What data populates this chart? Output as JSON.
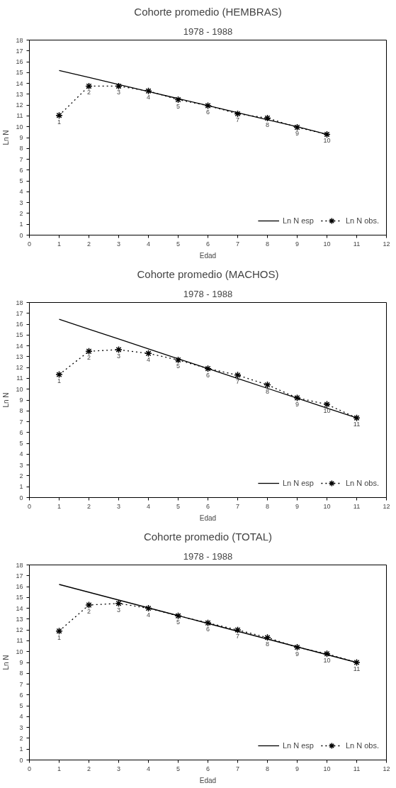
{
  "chart_data": [
    {
      "type": "line",
      "title": "Cohorte promedio (HEMBRAS)",
      "subtitle": "1978 - 1988",
      "xlabel": "Edad",
      "ylabel": "Ln N",
      "x": [
        1,
        2,
        3,
        4,
        5,
        6,
        7,
        8,
        9,
        10
      ],
      "series": [
        {
          "name": "Ln N esp",
          "color": "#000000",
          "line_style": "solid",
          "marker": "none",
          "values": [
            15.2,
            14.55,
            13.9,
            13.25,
            12.6,
            11.95,
            11.3,
            10.65,
            10.0,
            9.3
          ]
        },
        {
          "name": "Ln N obs.",
          "color": "#000000",
          "line_style": "dotted",
          "marker": "cross",
          "values": [
            11.05,
            13.75,
            13.75,
            13.3,
            12.5,
            11.95,
            11.2,
            10.8,
            9.95,
            9.3
          ]
        }
      ],
      "annotations": [
        {
          "text": "1",
          "x": 1,
          "y": 11.05
        },
        {
          "text": "2",
          "x": 2,
          "y": 13.75
        },
        {
          "text": "3",
          "x": 3,
          "y": 13.75
        },
        {
          "text": "4",
          "x": 4,
          "y": 13.3
        },
        {
          "text": "5",
          "x": 5,
          "y": 12.5
        },
        {
          "text": "6",
          "x": 6,
          "y": 11.95
        },
        {
          "text": "7",
          "x": 7,
          "y": 11.2
        },
        {
          "text": "8",
          "x": 8,
          "y": 10.8
        },
        {
          "text": "9",
          "x": 9,
          "y": 9.95
        },
        {
          "text": "10",
          "x": 10,
          "y": 9.3
        }
      ],
      "xlim": [
        0,
        12
      ],
      "ylim": [
        0,
        18
      ],
      "xticks": [
        0,
        1,
        2,
        3,
        4,
        5,
        6,
        7,
        8,
        9,
        10,
        11,
        12
      ],
      "yticks": [
        0,
        1,
        2,
        3,
        4,
        5,
        6,
        7,
        8,
        9,
        10,
        11,
        12,
        13,
        14,
        15,
        16,
        17,
        18
      ],
      "grid": false,
      "legend": "bottom right"
    },
    {
      "type": "line",
      "title": "Cohorte promedio (MACHOS)",
      "subtitle": "1978 - 1988",
      "xlabel": "Edad",
      "ylabel": "Ln N",
      "x": [
        1,
        2,
        3,
        4,
        5,
        6,
        7,
        8,
        9,
        10,
        11
      ],
      "series": [
        {
          "name": "Ln N esp",
          "color": "#000000",
          "line_style": "solid",
          "marker": "none",
          "values": [
            16.45,
            15.54,
            14.63,
            13.72,
            12.81,
            11.9,
            10.99,
            10.08,
            9.17,
            8.26,
            7.35
          ]
        },
        {
          "name": "Ln N obs.",
          "color": "#000000",
          "line_style": "dotted",
          "marker": "cross",
          "values": [
            11.35,
            13.5,
            13.65,
            13.3,
            12.7,
            11.9,
            11.3,
            10.4,
            9.2,
            8.6,
            7.35
          ]
        }
      ],
      "annotations": [
        {
          "text": "1",
          "x": 1,
          "y": 11.35
        },
        {
          "text": "2",
          "x": 2,
          "y": 13.5
        },
        {
          "text": "3",
          "x": 3,
          "y": 13.65
        },
        {
          "text": "4",
          "x": 4,
          "y": 13.3
        },
        {
          "text": "5",
          "x": 5,
          "y": 12.7
        },
        {
          "text": "6",
          "x": 6,
          "y": 11.9
        },
        {
          "text": "7",
          "x": 7,
          "y": 11.3
        },
        {
          "text": "8",
          "x": 8,
          "y": 10.4
        },
        {
          "text": "9",
          "x": 9,
          "y": 9.2
        },
        {
          "text": "10",
          "x": 10,
          "y": 8.6
        },
        {
          "text": "11",
          "x": 11,
          "y": 7.35
        }
      ],
      "xlim": [
        0,
        12
      ],
      "ylim": [
        0,
        18
      ],
      "xticks": [
        0,
        1,
        2,
        3,
        4,
        5,
        6,
        7,
        8,
        9,
        10,
        11,
        12
      ],
      "yticks": [
        0,
        1,
        2,
        3,
        4,
        5,
        6,
        7,
        8,
        9,
        10,
        11,
        12,
        13,
        14,
        15,
        16,
        17,
        18
      ],
      "grid": false,
      "legend": "bottom right"
    },
    {
      "type": "line",
      "title": "Cohorte promedio (TOTAL)",
      "subtitle": "1978 - 1988",
      "xlabel": "Edad",
      "ylabel": "Ln N",
      "x": [
        1,
        2,
        3,
        4,
        5,
        6,
        7,
        8,
        9,
        10,
        11
      ],
      "series": [
        {
          "name": "Ln N esp",
          "color": "#000000",
          "line_style": "solid",
          "marker": "none",
          "values": [
            16.2,
            15.48,
            14.76,
            14.04,
            13.32,
            12.6,
            11.88,
            11.16,
            10.44,
            9.72,
            9.0
          ]
        },
        {
          "name": "Ln N obs.",
          "color": "#000000",
          "line_style": "dotted",
          "marker": "cross",
          "values": [
            11.9,
            14.3,
            14.45,
            14.0,
            13.3,
            12.65,
            12.0,
            11.3,
            10.4,
            9.8,
            9.0
          ]
        }
      ],
      "annotations": [
        {
          "text": "1",
          "x": 1,
          "y": 11.9
        },
        {
          "text": "2",
          "x": 2,
          "y": 14.3
        },
        {
          "text": "3",
          "x": 3,
          "y": 14.45
        },
        {
          "text": "4",
          "x": 4,
          "y": 14.0
        },
        {
          "text": "5",
          "x": 5,
          "y": 13.3
        },
        {
          "text": "6",
          "x": 6,
          "y": 12.65
        },
        {
          "text": "7",
          "x": 7,
          "y": 12.0
        },
        {
          "text": "8",
          "x": 8,
          "y": 11.3
        },
        {
          "text": "9",
          "x": 9,
          "y": 10.4
        },
        {
          "text": "10",
          "x": 10,
          "y": 9.8
        },
        {
          "text": "11",
          "x": 11,
          "y": 9.0
        }
      ],
      "xlim": [
        0,
        12
      ],
      "ylim": [
        0,
        18
      ],
      "xticks": [
        0,
        1,
        2,
        3,
        4,
        5,
        6,
        7,
        8,
        9,
        10,
        11,
        12
      ],
      "yticks": [
        0,
        1,
        2,
        3,
        4,
        5,
        6,
        7,
        8,
        9,
        10,
        11,
        12,
        13,
        14,
        15,
        16,
        17,
        18
      ],
      "grid": false,
      "legend": "bottom right"
    }
  ]
}
